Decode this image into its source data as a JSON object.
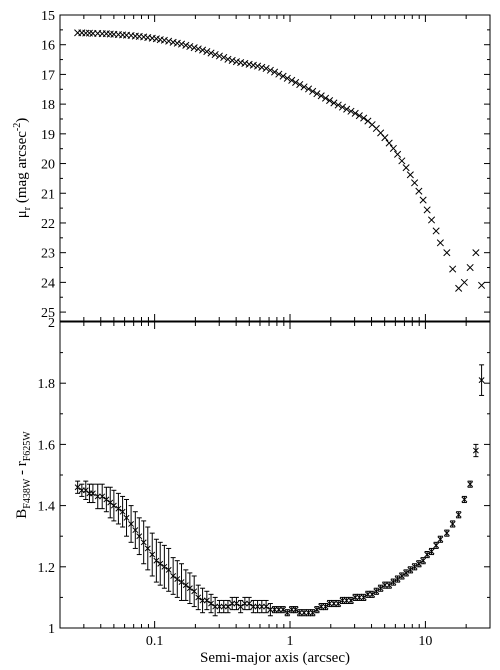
{
  "chart_data": [
    {
      "type": "scatter",
      "title": "",
      "xlabel": "",
      "ylabel_main": "μ",
      "ylabel_sub": "r",
      "ylabel_rest": " (mag arcsec",
      "ylabel_sup": "-2",
      "ylabel_close": ")",
      "xscale": "log",
      "xlim": [
        0.02,
        30
      ],
      "ylim": [
        15,
        25.3
      ],
      "y_inverted": true,
      "yticks": [
        "15",
        "16",
        "17",
        "18",
        "19",
        "20",
        "21",
        "22",
        "23",
        "24",
        "25"
      ],
      "marker": "x",
      "x": [
        0.027,
        0.029,
        0.031,
        0.033,
        0.035,
        0.038,
        0.041,
        0.044,
        0.047,
        0.05,
        0.054,
        0.058,
        0.062,
        0.067,
        0.072,
        0.077,
        0.083,
        0.089,
        0.096,
        0.103,
        0.11,
        0.118,
        0.127,
        0.137,
        0.147,
        0.158,
        0.17,
        0.182,
        0.196,
        0.21,
        0.226,
        0.243,
        0.261,
        0.28,
        0.301,
        0.324,
        0.348,
        0.374,
        0.402,
        0.432,
        0.464,
        0.499,
        0.536,
        0.576,
        0.619,
        0.666,
        0.716,
        0.769,
        0.827,
        0.889,
        0.955,
        1.03,
        1.1,
        1.18,
        1.27,
        1.37,
        1.47,
        1.58,
        1.7,
        1.83,
        1.96,
        2.11,
        2.27,
        2.44,
        2.62,
        2.82,
        3.03,
        3.25,
        3.5,
        3.76,
        4.04,
        4.34,
        4.67,
        5.02,
        5.4,
        5.8,
        6.23,
        6.7,
        7.2,
        7.74,
        8.32,
        8.95,
        9.62,
        10.3,
        11.1,
        12.0,
        12.9,
        14.4,
        15.9,
        17.6,
        19.4,
        21.4,
        23.6,
        26.0
      ],
      "y": [
        15.6,
        15.6,
        15.61,
        15.61,
        15.62,
        15.62,
        15.63,
        15.63,
        15.64,
        15.65,
        15.66,
        15.67,
        15.68,
        15.69,
        15.71,
        15.72,
        15.74,
        15.76,
        15.78,
        15.8,
        15.83,
        15.85,
        15.88,
        15.92,
        15.95,
        15.98,
        16.02,
        16.06,
        16.1,
        16.14,
        16.18,
        16.23,
        16.28,
        16.33,
        16.38,
        16.43,
        16.49,
        16.53,
        16.57,
        16.6,
        16.63,
        16.66,
        16.69,
        16.72,
        16.76,
        16.8,
        16.86,
        16.92,
        16.99,
        17.06,
        17.13,
        17.2,
        17.27,
        17.34,
        17.42,
        17.49,
        17.57,
        17.65,
        17.72,
        17.8,
        17.88,
        17.96,
        18.03,
        18.1,
        18.17,
        18.24,
        18.31,
        18.39,
        18.47,
        18.57,
        18.69,
        18.82,
        18.97,
        19.13,
        19.31,
        19.49,
        19.69,
        19.91,
        20.14,
        20.38,
        20.65,
        20.93,
        21.23,
        21.56,
        21.9,
        22.27,
        22.67,
        23.0,
        23.55,
        24.2,
        24.0,
        23.5,
        23.0,
        24.1
      ]
    },
    {
      "type": "scatter",
      "title": "",
      "xlabel": "Semi-major axis (arcsec)",
      "ylabel_main": "B",
      "ylabel_sub": "F438W",
      "ylabel_rest": " - r",
      "ylabel_sub2": "F625W",
      "xscale": "log",
      "xlim": [
        0.02,
        30
      ],
      "ylim": [
        1,
        2
      ],
      "yticks": [
        "1",
        "1.2",
        "1.4",
        "1.6",
        "1.8",
        "2"
      ],
      "xticks": [
        0.1,
        1,
        10
      ],
      "xtick_labels": [
        "0.1",
        "1",
        "10"
      ],
      "marker": "x",
      "error_bars": true,
      "x": [
        0.027,
        0.029,
        0.031,
        0.033,
        0.035,
        0.038,
        0.041,
        0.044,
        0.047,
        0.05,
        0.054,
        0.058,
        0.062,
        0.067,
        0.072,
        0.077,
        0.083,
        0.089,
        0.096,
        0.103,
        0.11,
        0.118,
        0.127,
        0.137,
        0.147,
        0.158,
        0.17,
        0.182,
        0.196,
        0.21,
        0.226,
        0.243,
        0.261,
        0.28,
        0.301,
        0.324,
        0.348,
        0.374,
        0.402,
        0.432,
        0.464,
        0.499,
        0.536,
        0.576,
        0.619,
        0.666,
        0.716,
        0.769,
        0.827,
        0.889,
        0.955,
        1.03,
        1.1,
        1.18,
        1.27,
        1.37,
        1.47,
        1.58,
        1.7,
        1.83,
        1.96,
        2.11,
        2.27,
        2.44,
        2.62,
        2.82,
        3.03,
        3.25,
        3.5,
        3.76,
        4.04,
        4.34,
        4.67,
        5.02,
        5.4,
        5.8,
        6.23,
        6.7,
        7.2,
        7.74,
        8.32,
        8.95,
        9.62,
        10.3,
        11.1,
        12.0,
        12.9,
        14.4,
        15.9,
        17.6,
        19.4,
        21.4,
        23.6,
        26.0
      ],
      "y": [
        1.46,
        1.45,
        1.45,
        1.44,
        1.44,
        1.43,
        1.43,
        1.42,
        1.41,
        1.4,
        1.39,
        1.38,
        1.36,
        1.34,
        1.32,
        1.3,
        1.28,
        1.26,
        1.24,
        1.22,
        1.21,
        1.2,
        1.19,
        1.17,
        1.16,
        1.15,
        1.14,
        1.13,
        1.12,
        1.1,
        1.09,
        1.09,
        1.08,
        1.07,
        1.07,
        1.07,
        1.07,
        1.08,
        1.08,
        1.07,
        1.08,
        1.08,
        1.07,
        1.07,
        1.07,
        1.07,
        1.06,
        1.06,
        1.06,
        1.06,
        1.05,
        1.06,
        1.06,
        1.05,
        1.05,
        1.05,
        1.05,
        1.06,
        1.07,
        1.07,
        1.08,
        1.08,
        1.08,
        1.09,
        1.09,
        1.09,
        1.1,
        1.1,
        1.1,
        1.11,
        1.11,
        1.12,
        1.13,
        1.14,
        1.14,
        1.15,
        1.16,
        1.17,
        1.18,
        1.19,
        1.2,
        1.21,
        1.22,
        1.24,
        1.25,
        1.27,
        1.29,
        1.31,
        1.34,
        1.37,
        1.42,
        1.47,
        1.58,
        1.81
      ],
      "yerr": [
        0.02,
        0.02,
        0.03,
        0.03,
        0.03,
        0.04,
        0.04,
        0.04,
        0.05,
        0.05,
        0.05,
        0.05,
        0.06,
        0.06,
        0.06,
        0.06,
        0.07,
        0.07,
        0.07,
        0.07,
        0.07,
        0.07,
        0.07,
        0.06,
        0.06,
        0.06,
        0.05,
        0.05,
        0.05,
        0.04,
        0.04,
        0.03,
        0.03,
        0.03,
        0.02,
        0.02,
        0.02,
        0.02,
        0.02,
        0.02,
        0.02,
        0.02,
        0.02,
        0.02,
        0.02,
        0.02,
        0.02,
        0.01,
        0.01,
        0.01,
        0.01,
        0.01,
        0.01,
        0.01,
        0.01,
        0.01,
        0.01,
        0.01,
        0.01,
        0.01,
        0.01,
        0.01,
        0.01,
        0.01,
        0.01,
        0.01,
        0.01,
        0.01,
        0.01,
        0.01,
        0.01,
        0.01,
        0.01,
        0.01,
        0.01,
        0.01,
        0.01,
        0.01,
        0.01,
        0.01,
        0.01,
        0.01,
        0.01,
        0.01,
        0.01,
        0.01,
        0.01,
        0.01,
        0.01,
        0.01,
        0.01,
        0.01,
        0.02,
        0.05
      ]
    }
  ]
}
